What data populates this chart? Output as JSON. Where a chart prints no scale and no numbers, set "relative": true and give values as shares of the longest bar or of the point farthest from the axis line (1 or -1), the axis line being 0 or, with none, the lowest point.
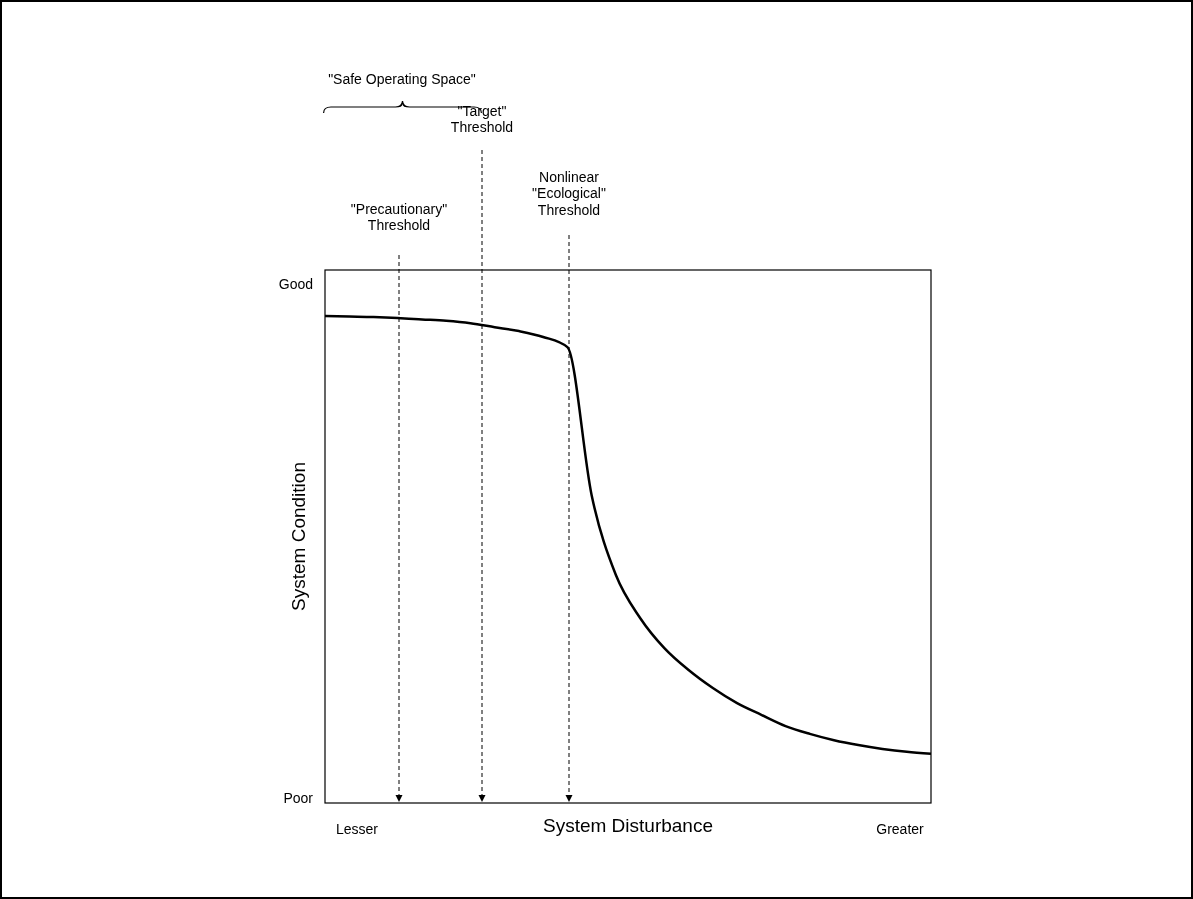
{
  "chart_data": {
    "type": "line",
    "relative": true,
    "xlabel": "System Disturbance",
    "ylabel": "System Condition",
    "categories": [
      null,
      null,
      null,
      null,
      null,
      null,
      null,
      null,
      null,
      null,
      null,
      null,
      null,
      null,
      null,
      null,
      null,
      null,
      null,
      null,
      null,
      null,
      null,
      null,
      null,
      null
    ],
    "grid": false,
    "marker": "none",
    "line_style": "solid",
    "series": [
      {
        "color": "#000000",
        "values": [
          1.0,
          0.999,
          0.998,
          0.996,
          0.993,
          0.99,
          0.985,
          0.977,
          0.969,
          0.957,
          0.936,
          0.632,
          0.468,
          0.38,
          0.318,
          0.273,
          0.236,
          0.205,
          0.181,
          0.158,
          0.142,
          0.129,
          0.119,
          0.111,
          0.105,
          0.101
        ]
      }
    ],
    "annotations": [
      "Good",
      "Poor",
      "Lesser",
      "Greater",
      "\"Safe Operating Space\"",
      "\"Precautionary\"\nThreshold",
      "\"Target\"\nThreshold",
      "Nonlinear\n\"Ecological\"\nThreshold"
    ]
  }
}
